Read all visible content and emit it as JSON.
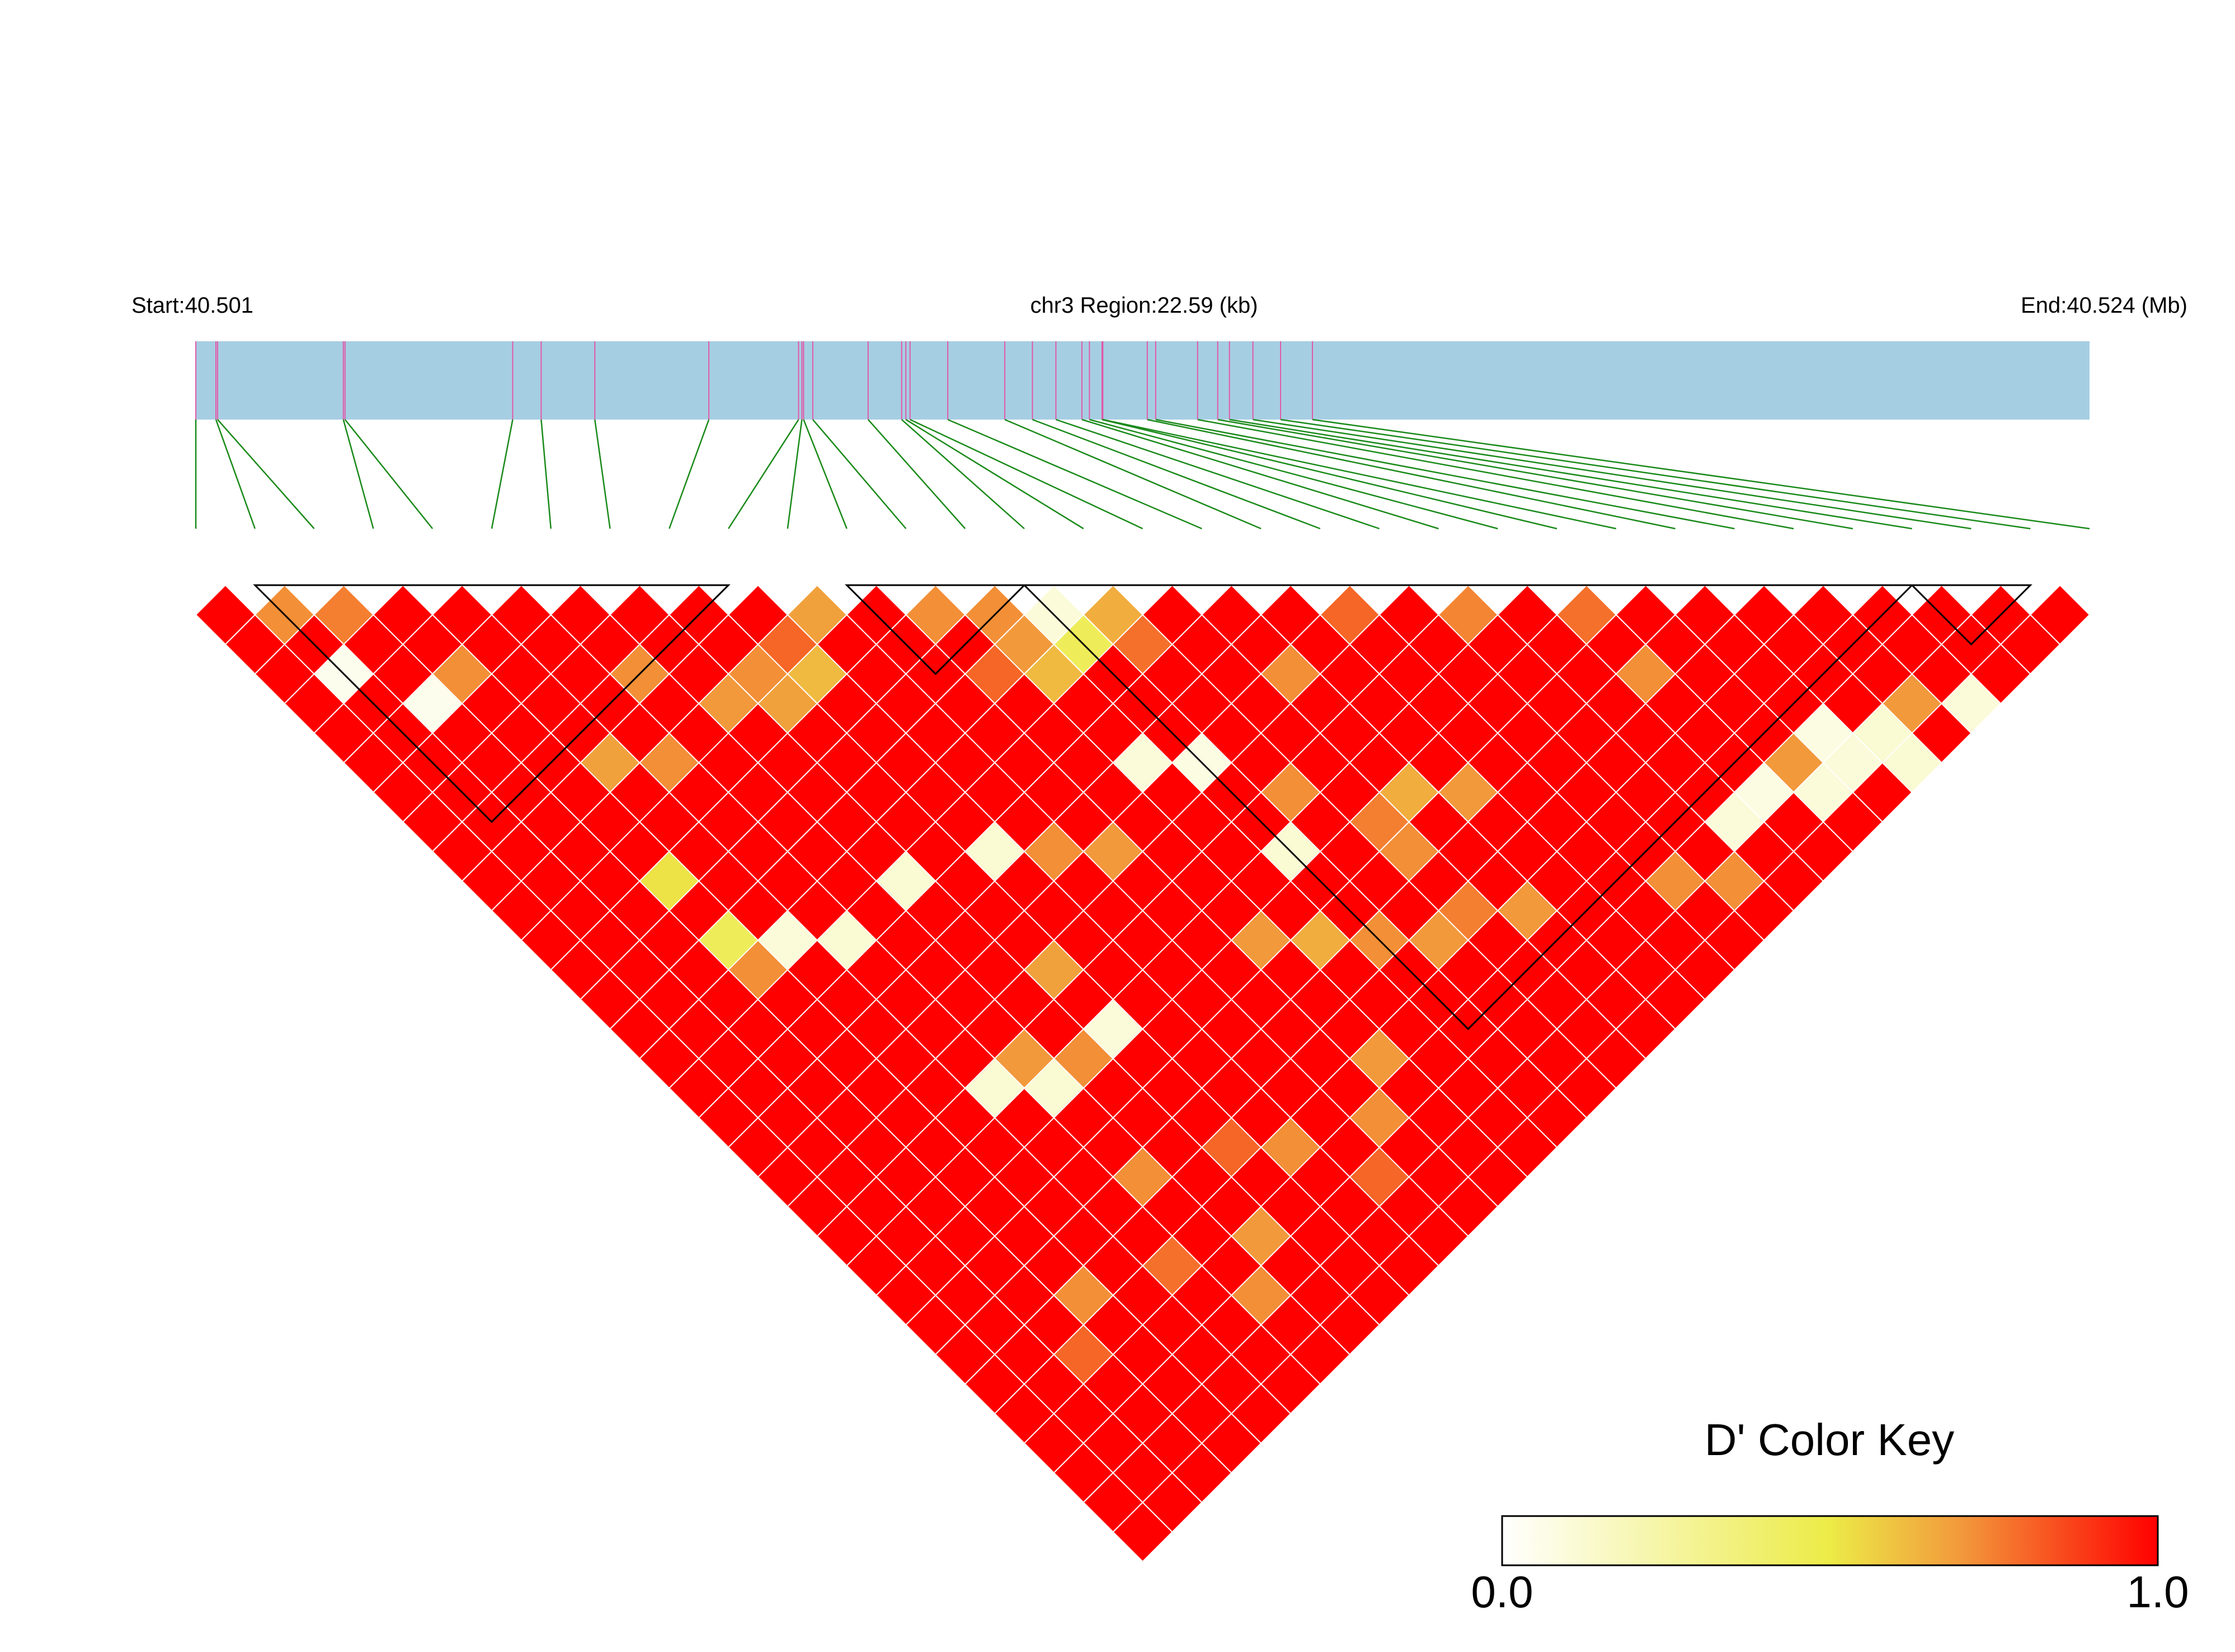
{
  "chart_data": {
    "type": "heatmap",
    "title": "",
    "region": {
      "chromosome": "chr3",
      "start_label": "Start:40.501",
      "center_label": "chr3 Region:22.59 (kb)",
      "end_label": "End:40.524 (Mb)",
      "start_mb": 40.501,
      "end_mb": 40.524,
      "length_kb": 22.59
    },
    "snp_count": 33,
    "snp_positions_kb": [
      0.0,
      0.24,
      0.26,
      1.76,
      1.78,
      3.78,
      4.12,
      4.76,
      6.12,
      7.19,
      7.23,
      7.25,
      7.36,
      8.02,
      8.42,
      8.47,
      8.52,
      8.97,
      9.65,
      9.98,
      10.26,
      10.57,
      10.66,
      10.81,
      10.82,
      11.35,
      11.45,
      11.95,
      12.19,
      12.33,
      12.61,
      12.94,
      13.32
    ],
    "color_key": {
      "title": "D' Color Key",
      "min_label": "0.0",
      "max_label": "1.0",
      "min": 0.0,
      "max": 1.0,
      "stops": [
        "#ffffff",
        "#eceb47",
        "#f2993b",
        "#ff0000"
      ]
    },
    "colors": {
      "region_bar": "#a6cee3",
      "snp_tick": "#e05aa8",
      "connector": "#1a8a1a",
      "cell_default": "#ff0000",
      "cell_border": "#ffffff",
      "block_outline": "#000000"
    },
    "default_dprime": 1.0,
    "dprime_exceptions": [
      {
        "i": 1,
        "j": 2,
        "value": 0.72
      },
      {
        "i": 2,
        "j": 3,
        "value": 0.75
      },
      {
        "i": 12,
        "j": 13,
        "value": 0.72
      },
      {
        "i": 21,
        "j": 22,
        "value": 0.74
      },
      {
        "i": 1,
        "j": 4,
        "value": 0.05
      },
      {
        "i": 2,
        "j": 6,
        "value": 0.05
      },
      {
        "i": 3,
        "j": 6,
        "value": 0.72
      },
      {
        "i": 8,
        "j": 11,
        "value": 0.72
      },
      {
        "i": 9,
        "j": 11,
        "value": 0.8
      },
      {
        "i": 10,
        "j": 11,
        "value": 0.68
      },
      {
        "i": 8,
        "j": 12,
        "value": 0.68
      },
      {
        "i": 9,
        "j": 12,
        "value": 0.62
      },
      {
        "i": 12,
        "j": 15,
        "value": 0.8
      },
      {
        "i": 13,
        "j": 14,
        "value": 0.72
      },
      {
        "i": 13,
        "j": 15,
        "value": 0.7
      },
      {
        "i": 14,
        "j": 15,
        "value": 0.1
      },
      {
        "i": 13,
        "j": 16,
        "value": 0.62
      },
      {
        "i": 14,
        "j": 16,
        "value": 0.45
      },
      {
        "i": 15,
        "j": 16,
        "value": 0.65
      },
      {
        "i": 15,
        "j": 17,
        "value": 0.78
      },
      {
        "i": 17,
        "j": 20,
        "value": 0.72
      },
      {
        "i": 19,
        "j": 20,
        "value": 0.8
      },
      {
        "i": 23,
        "j": 26,
        "value": 0.72
      },
      {
        "i": 23,
        "j": 24,
        "value": 0.78
      },
      {
        "i": 6,
        "j": 9,
        "value": 0.72
      },
      {
        "i": 4,
        "j": 10,
        "value": 0.68
      },
      {
        "i": 5,
        "j": 11,
        "value": 0.72
      },
      {
        "i": 7,
        "j": 11,
        "value": 0.7
      },
      {
        "i": 13,
        "j": 19,
        "value": 0.1
      },
      {
        "i": 14,
        "j": 20,
        "value": 0.08
      },
      {
        "i": 15,
        "j": 22,
        "value": 0.72
      },
      {
        "i": 3,
        "j": 13,
        "value": 0.52
      },
      {
        "i": 7,
        "j": 17,
        "value": 0.12
      },
      {
        "i": 14,
        "j": 23,
        "value": 0.12
      },
      {
        "i": 16,
        "j": 24,
        "value": 0.75
      },
      {
        "i": 17,
        "j": 24,
        "value": 0.65
      },
      {
        "i": 18,
        "j": 25,
        "value": 0.7
      },
      {
        "i": 16,
        "j": 25,
        "value": 0.72
      },
      {
        "i": 25,
        "j": 30,
        "value": 0.08
      },
      {
        "i": 26,
        "j": 31,
        "value": 0.12
      },
      {
        "i": 27,
        "j": 31,
        "value": 0.7
      },
      {
        "i": 28,
        "j": 32,
        "value": 0.1
      },
      {
        "i": 26,
        "j": 32,
        "value": 0.12
      },
      {
        "i": 25,
        "j": 31,
        "value": 0.1
      },
      {
        "i": 24,
        "j": 31,
        "value": 0.1
      },
      {
        "i": 24,
        "j": 30,
        "value": 0.7
      },
      {
        "i": 23,
        "j": 30,
        "value": 0.08
      },
      {
        "i": 22,
        "j": 30,
        "value": 0.1
      },
      {
        "i": 4,
        "j": 16,
        "value": 0.1
      },
      {
        "i": 5,
        "j": 17,
        "value": 0.12
      },
      {
        "i": 3,
        "j": 15,
        "value": 0.45
      },
      {
        "i": 3,
        "j": 16,
        "value": 0.72
      },
      {
        "i": 9,
        "j": 18,
        "value": 0.12
      },
      {
        "i": 10,
        "j": 19,
        "value": 0.72
      },
      {
        "i": 11,
        "j": 20,
        "value": 0.7
      },
      {
        "i": 8,
        "j": 21,
        "value": 0.68
      },
      {
        "i": 12,
        "j": 24,
        "value": 0.7
      },
      {
        "i": 13,
        "j": 25,
        "value": 0.65
      },
      {
        "i": 14,
        "j": 26,
        "value": 0.72
      },
      {
        "i": 15,
        "j": 27,
        "value": 0.7
      },
      {
        "i": 16,
        "j": 27,
        "value": 0.75
      },
      {
        "i": 17,
        "j": 28,
        "value": 0.7
      },
      {
        "i": 21,
        "j": 31,
        "value": 0.72
      },
      {
        "i": 20,
        "j": 30,
        "value": 0.72
      },
      {
        "i": 5,
        "j": 22,
        "value": 0.12
      },
      {
        "i": 6,
        "j": 22,
        "value": 0.7
      },
      {
        "i": 6,
        "j": 23,
        "value": 0.12
      },
      {
        "i": 7,
        "j": 23,
        "value": 0.72
      },
      {
        "i": 8,
        "j": 23,
        "value": 0.1
      },
      {
        "i": 12,
        "j": 28,
        "value": 0.7
      },
      {
        "i": 11,
        "j": 29,
        "value": 0.72
      },
      {
        "i": 10,
        "j": 30,
        "value": 0.8
      },
      {
        "i": 9,
        "j": 28,
        "value": 0.72
      },
      {
        "i": 8,
        "j": 27,
        "value": 0.8
      },
      {
        "i": 6,
        "j": 26,
        "value": 0.72
      },
      {
        "i": 7,
        "j": 29,
        "value": 0.7
      },
      {
        "i": 5,
        "j": 28,
        "value": 0.78
      },
      {
        "i": 6,
        "j": 30,
        "value": 0.72
      },
      {
        "i": 3,
        "j": 27,
        "value": 0.72
      },
      {
        "i": 2,
        "j": 28,
        "value": 0.8
      }
    ],
    "haplotype_blocks": [
      {
        "start": 1,
        "end": 9
      },
      {
        "start": 11,
        "end": 14
      },
      {
        "start": 14,
        "end": 29
      },
      {
        "start": 29,
        "end": 31
      }
    ]
  },
  "color_key": {
    "title": "D' Color Key",
    "min_label": "0.0",
    "max_label": "1.0"
  }
}
